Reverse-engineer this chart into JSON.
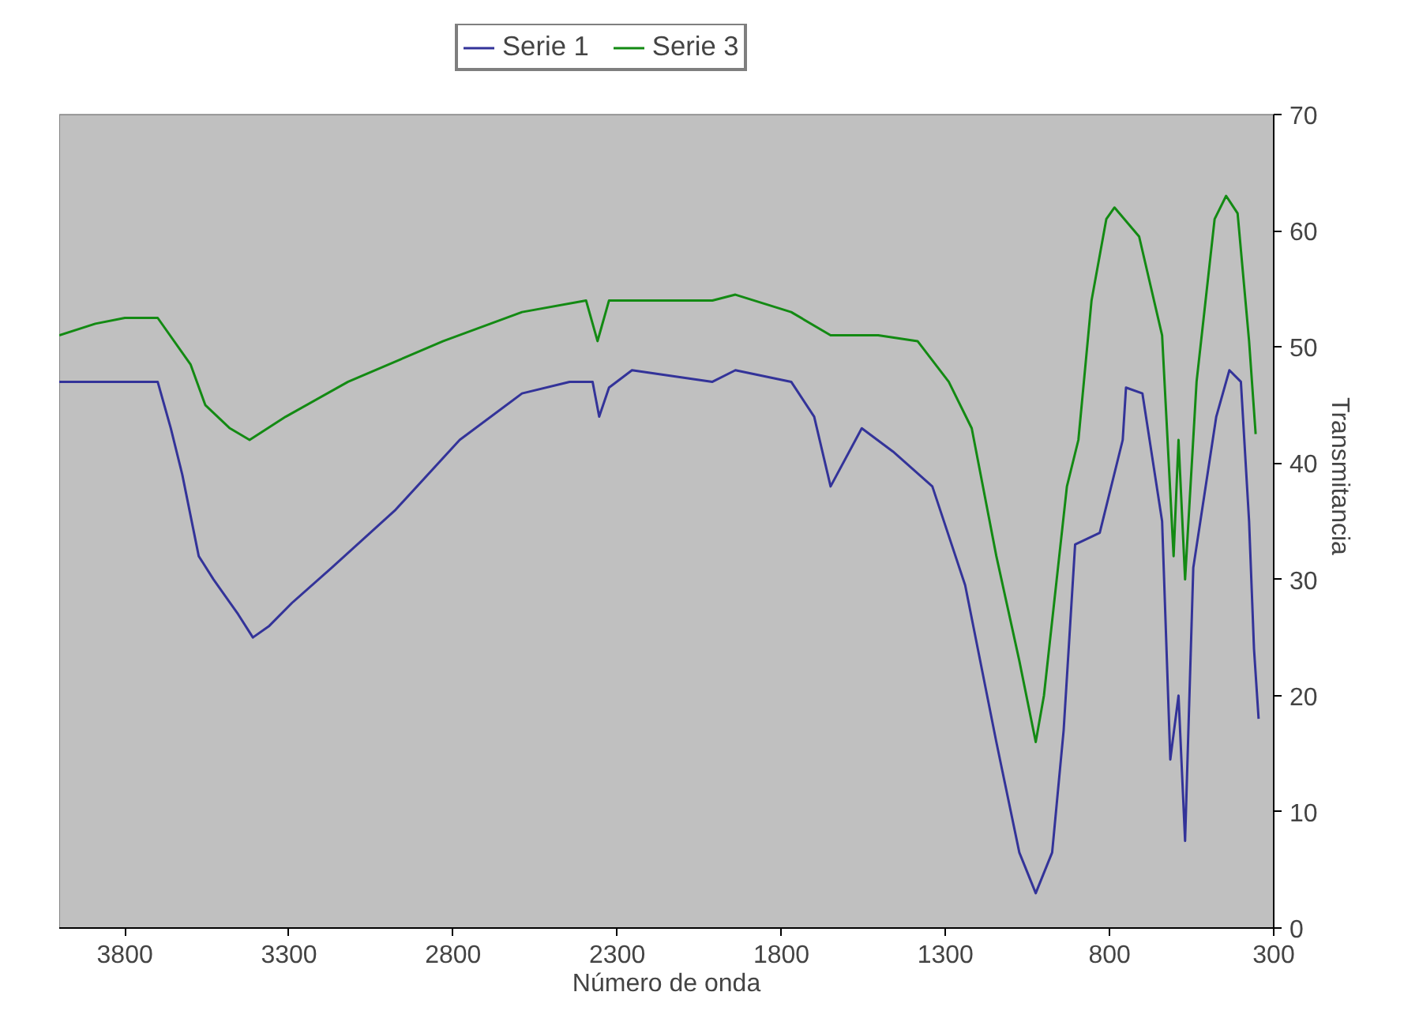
{
  "chart_data": {
    "type": "line",
    "xlabel": "Número de onda",
    "y2label": "Transmitancia",
    "xlim": [
      4000,
      300
    ],
    "xticks": [
      3800,
      3300,
      2800,
      2300,
      1800,
      1300,
      800,
      300
    ],
    "y2lim": [
      0,
      70
    ],
    "y2ticks": [
      0,
      10,
      20,
      30,
      40,
      50,
      60,
      70
    ],
    "legend": "top",
    "grid": false,
    "series": [
      {
        "name": "Serie 1",
        "color": "#333399",
        "axis": "y2",
        "x": [
          4000,
          3800,
          3700,
          3660,
          3625,
          3575,
          3530,
          3455,
          3410,
          3360,
          3290,
          3170,
          2975,
          2780,
          2590,
          2445,
          2375,
          2355,
          2325,
          2255,
          2010,
          1940,
          1770,
          1700,
          1650,
          1555,
          1460,
          1340,
          1240,
          1145,
          1075,
          1025,
          975,
          940,
          905,
          830,
          760,
          750,
          700,
          640,
          615,
          590,
          570,
          545,
          475,
          435,
          400,
          375,
          360,
          346
        ],
        "values": [
          47,
          47,
          47,
          43,
          39,
          32,
          30,
          27,
          25,
          26,
          28,
          31,
          36,
          42,
          46,
          47,
          47,
          44,
          46.5,
          48,
          47,
          48,
          47,
          44,
          38,
          43,
          41,
          38,
          29.5,
          16,
          6.5,
          3,
          6.5,
          17,
          33,
          34,
          42,
          46.5,
          46,
          35,
          14.5,
          20,
          7.5,
          31,
          44,
          48,
          47,
          35,
          24,
          18
        ]
      },
      {
        "name": "Serie 3",
        "color": "#138a13",
        "axis": "y2",
        "x": [
          4000,
          3890,
          3800,
          3700,
          3600,
          3555,
          3480,
          3420,
          3310,
          3120,
          2830,
          2590,
          2395,
          2360,
          2325,
          2010,
          1940,
          1770,
          1650,
          1505,
          1385,
          1290,
          1220,
          1145,
          1075,
          1025,
          1000,
          930,
          895,
          855,
          810,
          785,
          710,
          640,
          605,
          590,
          570,
          535,
          480,
          445,
          410,
          375,
          355
        ],
        "values": [
          51,
          52,
          52.5,
          52.5,
          48.5,
          45,
          43,
          42,
          44,
          47,
          50.5,
          53,
          54,
          50.5,
          54,
          54,
          54.5,
          53,
          51,
          51,
          50.5,
          47,
          43,
          32,
          23,
          16,
          20,
          38,
          42,
          54,
          61,
          62,
          59.5,
          51,
          32,
          42,
          30,
          47,
          61,
          63,
          61.5,
          50.5,
          42.5
        ]
      }
    ]
  }
}
